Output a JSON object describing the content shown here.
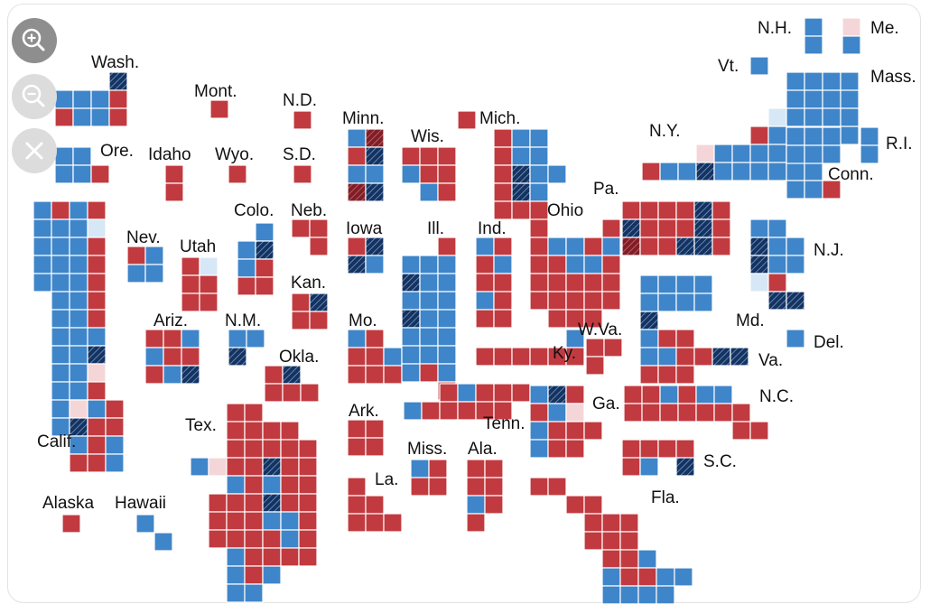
{
  "map_data": {
    "colors": {
      "dem": "#3f85c9",
      "rep": "#c13a3f",
      "lean_dem": "#d6e7f6",
      "lean_rep": "#f4d6d8",
      "dem_flip": "#16325e",
      "rep_flip": "#7d1f28",
      "border": "#ffffff"
    },
    "legend_codes": {
      "D": "dem",
      "R": "rep",
      "l": "lean_dem",
      "p": "lean_rep",
      "d": "dem_flip",
      "r": "rep_flip"
    },
    "states": [
      {
        "key": "wa",
        "label": "Wash.",
        "rows": [
          "...d",
          "DDDR",
          "RDDR"
        ]
      },
      {
        "key": "or",
        "label": "Ore.",
        "rows": [
          "DD.",
          "DDR"
        ]
      },
      {
        "key": "ca",
        "label": "Calif.",
        "rows": [
          "DRDR",
          "DDDl",
          "DDDR",
          "DDDR",
          "DDDR",
          ".DDR",
          ".DDR",
          ".DDD",
          ".DDd",
          ".DDp",
          ".DDR",
          ".DpDR",
          ".DdRR",
          "..DRD",
          "..RRD"
        ]
      },
      {
        "key": "id",
        "label": "Idaho",
        "rows": [
          "R",
          "R"
        ]
      },
      {
        "key": "mt",
        "label": "Mont.",
        "rows": [
          "R"
        ]
      },
      {
        "key": "wy",
        "label": "Wyo.",
        "rows": [
          "R"
        ]
      },
      {
        "key": "nv",
        "label": "Nev.",
        "rows": [
          "RD",
          "DD"
        ]
      },
      {
        "key": "ut",
        "label": "Utah",
        "rows": [
          "Rl",
          "RR",
          "RR"
        ]
      },
      {
        "key": "az",
        "label": "Ariz.",
        "rows": [
          "RRD",
          "DRR",
          "RDd"
        ]
      },
      {
        "key": "co",
        "label": "Colo.",
        "rows": [
          ".D",
          "Dd",
          "DR",
          "RR"
        ]
      },
      {
        "key": "nm",
        "label": "N.M.",
        "rows": [
          "DD",
          "d."
        ]
      },
      {
        "key": "nd",
        "label": "N.D.",
        "rows": [
          "R"
        ]
      },
      {
        "key": "sd",
        "label": "S.D.",
        "rows": [
          "R"
        ]
      },
      {
        "key": "ne",
        "label": "Neb.",
        "rows": [
          "RR",
          ".R"
        ]
      },
      {
        "key": "ks",
        "label": "Kan.",
        "rows": [
          "Rd",
          "RR"
        ]
      },
      {
        "key": "ok",
        "label": "Okla.",
        "rows": [
          "Rd.",
          "RRR"
        ]
      },
      {
        "key": "tx",
        "label": "Tex.",
        "rows": [
          "..RR",
          "..RRRR",
          "..RRRRR",
          "DpRRdRR",
          "..DRDRR",
          ".RRRdRR",
          ".RRRDDR",
          ".RRRRDR",
          "..DRRRR",
          "..DRD",
          "..DD"
        ]
      },
      {
        "key": "mn",
        "label": "Minn.",
        "rows": [
          "Dr",
          "Rd",
          "DD",
          "rd"
        ]
      },
      {
        "key": "ia",
        "label": "Iowa",
        "rows": [
          "Rd",
          "dD"
        ]
      },
      {
        "key": "mo",
        "label": "Mo.",
        "rows": [
          "DR",
          "RRD",
          "RRR"
        ]
      },
      {
        "key": "ar",
        "label": "Ark.",
        "rows": [
          "RR",
          "RR"
        ]
      },
      {
        "key": "la",
        "label": "La.",
        "rows": [
          "R",
          "RR",
          "RRR"
        ]
      },
      {
        "key": "wi",
        "label": "Wis.",
        "rows": [
          "RRR",
          "DRR",
          ".DR"
        ]
      },
      {
        "key": "il",
        "label": "Ill.",
        "rows": [
          "..R",
          "DDD",
          "dDD",
          "DDD",
          "dDD",
          "DDD",
          "DDD",
          "DRD",
          "..R"
        ]
      },
      {
        "key": "in",
        "label": "Ind.",
        "rows": [
          "DR",
          "RD",
          "RR",
          "DR",
          "RR"
        ]
      },
      {
        "key": "mi",
        "label": "Mich.",
        "rows": [
          "R",
          "..RDD",
          "..RDD",
          "..RdDD",
          "..RdD",
          "..RRR"
        ]
      },
      {
        "key": "oh",
        "label": "Ohio",
        "rows": [
          "R...R",
          "RDDRD",
          "RRDDR",
          "RRRRR",
          "RRRRR",
          ".RRR"
        ]
      },
      {
        "key": "ky",
        "label": "Ky.",
        "rows": [
          ".....D",
          "RRRRRR"
        ]
      },
      {
        "key": "tn",
        "label": "Tenn.",
        "rows": [
          "..RDRRR",
          "DRRRRR"
        ]
      },
      {
        "key": "ms",
        "label": "Miss.",
        "rows": [
          "DR",
          "RR"
        ]
      },
      {
        "key": "al",
        "label": "Ala.",
        "rows": [
          "RR",
          "RR",
          "DR",
          "R."
        ]
      },
      {
        "key": "ga",
        "label": "Ga.",
        "rows": [
          "DdR",
          "RDp",
          "DRRR",
          "DRR"
        ]
      },
      {
        "key": "fl",
        "label": "Fla.",
        "rows": [
          "RR",
          "..RR",
          "...RRR",
          "...RRR",
          "....RRD",
          "....DRRDD",
          "....DDDD",
          "....ddDD",
          "......DD"
        ]
      },
      {
        "key": "sc",
        "label": "S.C.",
        "rows": [
          "RRRR",
          "RD.d"
        ]
      },
      {
        "key": "nc",
        "label": "N.C.",
        "rows": [
          "RRDRDD",
          "RRRRRRR",
          "......RR"
        ]
      },
      {
        "key": "va",
        "label": "Va.",
        "rows": [
          "d",
          "DRR",
          "DDRRdd",
          "RRR"
        ]
      },
      {
        "key": "wv",
        "label": "W.Va.",
        "rows": [
          "RR",
          "R"
        ]
      },
      {
        "key": "md",
        "label": "Md.",
        "rows": [
          "DDDD",
          "DDDD"
        ]
      },
      {
        "key": "de",
        "label": "Del.",
        "rows": [
          "D"
        ]
      },
      {
        "key": "pa",
        "label": "Pa.",
        "rows": [
          "RRRRdR",
          "dRRRdR",
          "rRRddR"
        ]
      },
      {
        "key": "nj",
        "label": "N.J.",
        "rows": [
          "DD",
          "dDD",
          "dDD",
          "lR",
          ".dd"
        ]
      },
      {
        "key": "ny",
        "label": "N.Y.",
        "rows": [
          ".........DD",
          ".......lRDD",
          "......RDDDDD",
          "...pDDDDDDD",
          "RDDdDDDDDD",
          "........DDR"
        ]
      },
      {
        "key": "vt",
        "label": "Vt.",
        "rows": [
          "D"
        ]
      },
      {
        "key": "nh",
        "label": "N.H.",
        "rows": [
          "D",
          "D"
        ]
      },
      {
        "key": "me",
        "label": "Me.",
        "rows": [
          "p",
          "D"
        ]
      },
      {
        "key": "ma",
        "label": "Mass.",
        "rows": [
          "DDDD",
          "DDDD",
          "DDDD"
        ]
      },
      {
        "key": "ri",
        "label": "R.I.",
        "rows": [
          "D",
          "D"
        ]
      },
      {
        "key": "ct",
        "label": "Conn.",
        "rows": [
          "DDD",
          "DDD"
        ]
      },
      {
        "key": "ak",
        "label": "Alaska",
        "rows": [
          "R"
        ]
      },
      {
        "key": "hi",
        "label": "Hawaii",
        "rows": [
          "D",
          ".D"
        ]
      }
    ]
  },
  "controls": [
    {
      "key": "zoom_in",
      "icon": "zoom-in-icon"
    },
    {
      "key": "zoom_out",
      "icon": "zoom-out-icon"
    },
    {
      "key": "close",
      "icon": "close-icon"
    }
  ]
}
